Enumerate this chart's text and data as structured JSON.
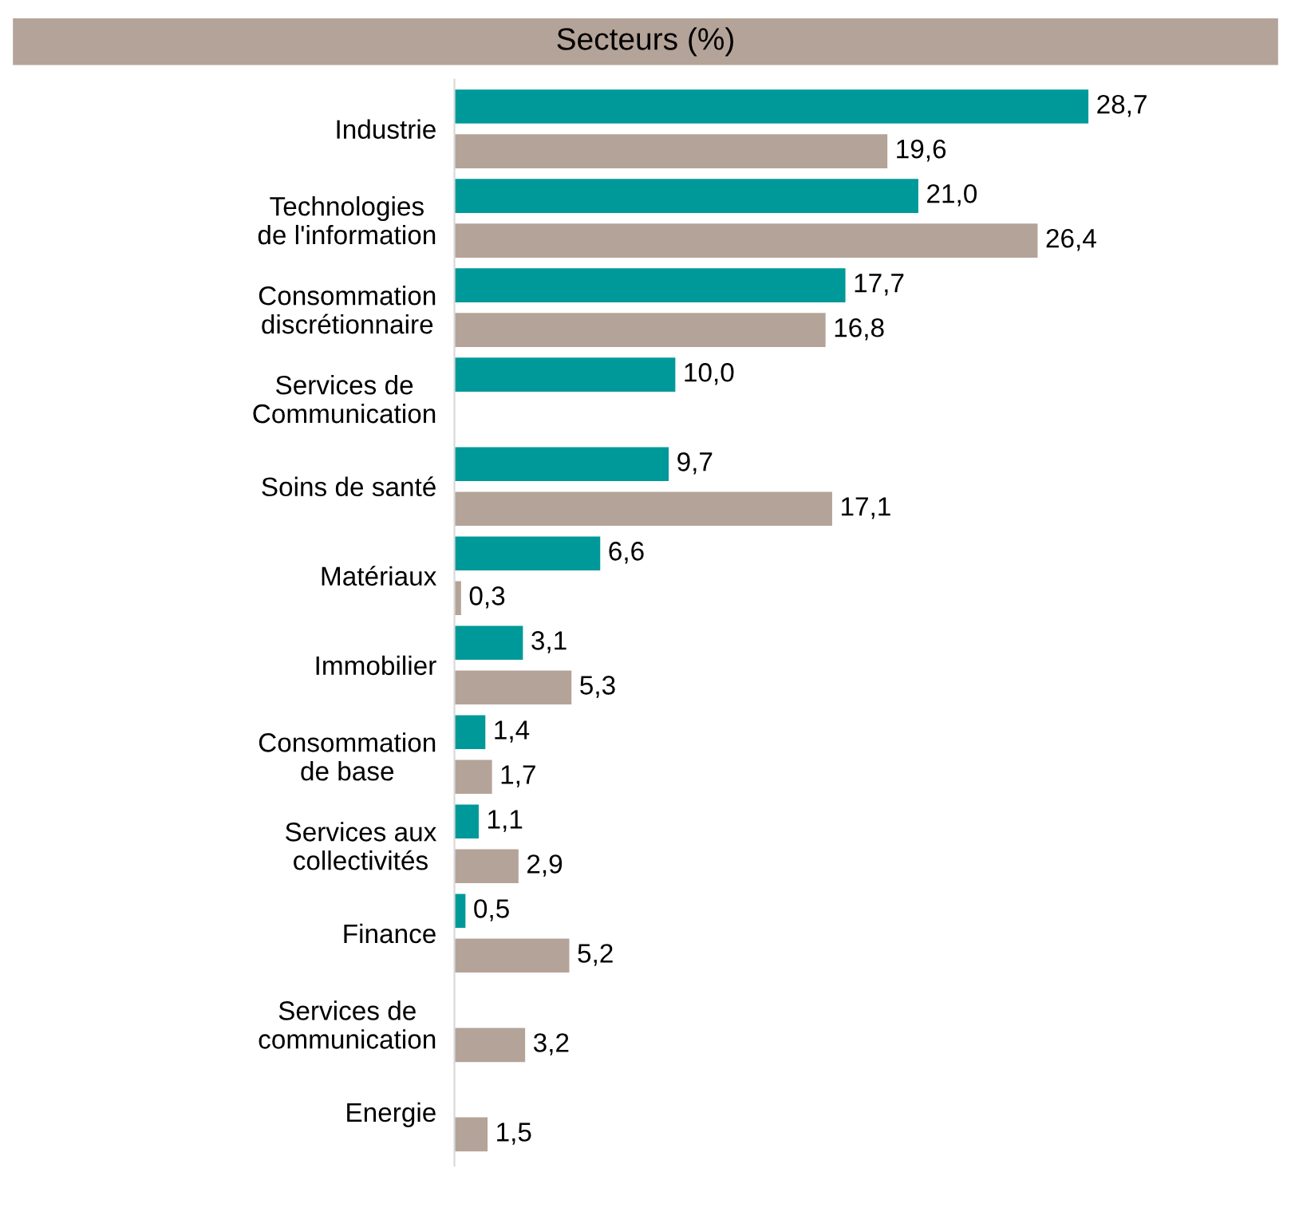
{
  "chart_data": {
    "type": "bar",
    "orientation": "horizontal",
    "title": "Secteurs (%)",
    "categories": [
      "Industrie",
      "Technologies\nde l'information",
      "Consommation\ndiscrétionnaire",
      "Services de\nCommunication",
      "Soins de santé",
      "Matériaux",
      "Immobilier",
      "Consommation\nde base",
      "Services aux\ncollectivités",
      "Finance",
      "Services de\ncommunication",
      "Energie"
    ],
    "series": [
      {
        "color": "#009999",
        "values": [
          28.7,
          21.0,
          17.7,
          10.0,
          9.7,
          6.6,
          3.1,
          1.4,
          1.1,
          0.5,
          null,
          null
        ],
        "value_labels": [
          "28,7",
          "21,0",
          "17,7",
          "10,0",
          "9,7",
          "6,6",
          "3,1",
          "1,4",
          "1,1",
          "0,5",
          null,
          null
        ]
      },
      {
        "color": "#b4a398",
        "values": [
          19.6,
          26.4,
          16.8,
          null,
          17.1,
          0.3,
          5.3,
          1.7,
          2.9,
          5.2,
          3.2,
          1.5
        ],
        "value_labels": [
          "19,6",
          "26,4",
          "16,8",
          null,
          "17,1",
          "0,3",
          "5,3",
          "1,7",
          "2,9",
          "5,2",
          "3,2",
          "1,5"
        ]
      }
    ],
    "grid": false,
    "legend": false,
    "tick_labels": "y"
  }
}
